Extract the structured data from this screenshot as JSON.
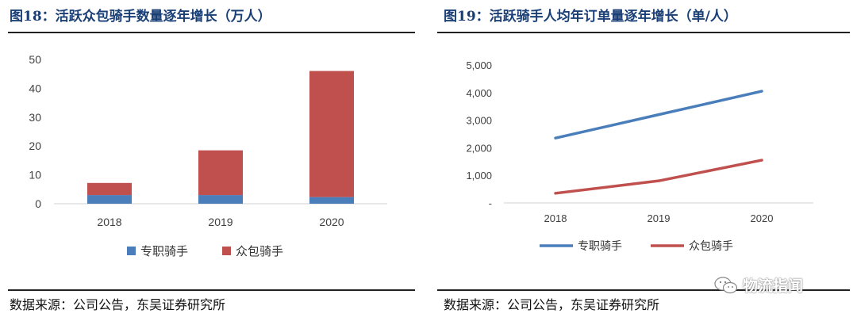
{
  "left": {
    "title": "图18：活跃众包骑手数量逐年增长（万人）",
    "source": "数据来源：公司公告，东吴证券研究所"
  },
  "right": {
    "title": "图19：活跃骑手人均年订单量逐年增长（单/人）",
    "source": "数据来源：公司公告，东吴证券研究所"
  },
  "watermark": {
    "text": "物流指闻",
    "icon": "wechat-icon"
  },
  "colors": {
    "blue": "#4a7ebb",
    "red": "#c0504d",
    "title": "#1a3f76",
    "axis": "#d9d9d9",
    "tick": "#404040"
  },
  "chart_data": [
    {
      "type": "bar",
      "stacked": true,
      "categories": [
        "2018",
        "2019",
        "2020"
      ],
      "series": [
        {
          "name": "专职骑手",
          "values": [
            3,
            3,
            2.3
          ],
          "color": "#4a7ebb"
        },
        {
          "name": "众包骑手",
          "values": [
            4.2,
            15.5,
            43.7
          ],
          "color": "#c0504d"
        }
      ],
      "ylim": [
        0,
        50
      ],
      "yticks": [
        "0",
        "10",
        "20",
        "30",
        "40",
        "50"
      ],
      "grid": false,
      "legend": "bottom",
      "xlabel": "",
      "ylabel": ""
    },
    {
      "type": "line",
      "categories": [
        "2018",
        "2019",
        "2020"
      ],
      "series": [
        {
          "name": "专职骑手",
          "values": [
            2350,
            3200,
            4050
          ],
          "color": "#4a7ebb"
        },
        {
          "name": "众包骑手",
          "values": [
            350,
            800,
            1550
          ],
          "color": "#c0504d"
        }
      ],
      "ylim": [
        0,
        5000
      ],
      "yticks": [
        "-",
        "1,000",
        "2,000",
        "3,000",
        "4,000",
        "5,000"
      ],
      "grid": false,
      "legend": "bottom",
      "xlabel": "",
      "ylabel": ""
    }
  ]
}
